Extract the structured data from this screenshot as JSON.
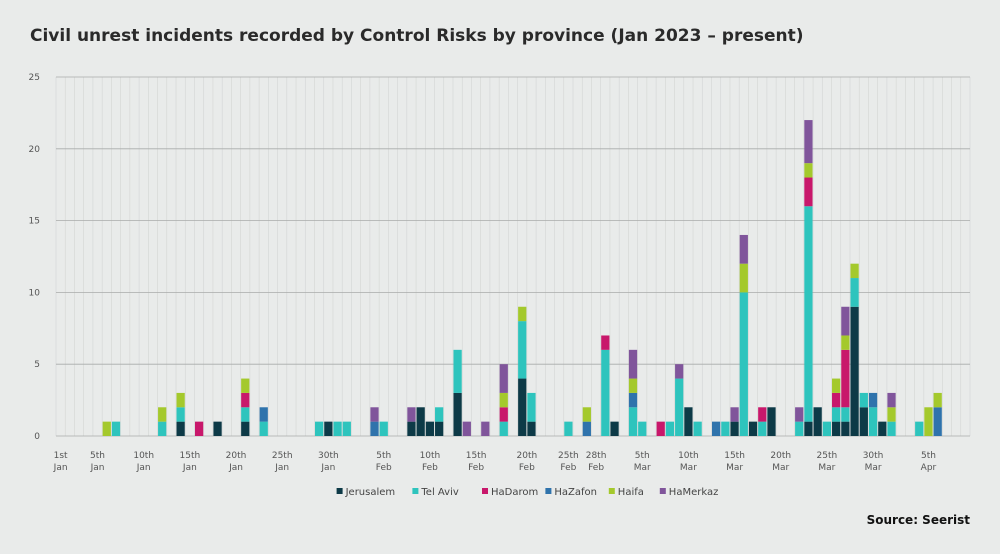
{
  "chart_data": {
    "type": "bar",
    "stacked": true,
    "title": "Civil unrest incidents recorded by Control Risks by province (Jan 2023 – present)",
    "source": "Source: Seerist",
    "xlabel": "",
    "ylabel": "",
    "ylim": [
      0,
      25
    ],
    "yticks": [
      0,
      5,
      10,
      15,
      20,
      25
    ],
    "grid": true,
    "legend_position": "bottom-center",
    "num_days": 99,
    "colors": {
      "Jerusalem": "#0d3a47",
      "Tel Aviv": "#2ec4bd",
      "HaDarom": "#c8186b",
      "HaZafon": "#2f73ac",
      "Haifa": "#a4c92c",
      "HaMerkaz": "#80559b"
    },
    "series_order": [
      "Jerusalem",
      "Tel Aviv",
      "HaDarom",
      "HaZafon",
      "Haifa",
      "HaMerkaz"
    ],
    "x_tick_labels": [
      {
        "day": 1,
        "lines": [
          "1st",
          "Jan"
        ]
      },
      {
        "day": 5,
        "lines": [
          "5th",
          "Jan"
        ]
      },
      {
        "day": 10,
        "lines": [
          "10th",
          "Jan"
        ]
      },
      {
        "day": 15,
        "lines": [
          "15th",
          "Jan"
        ]
      },
      {
        "day": 20,
        "lines": [
          "20th",
          "Jan"
        ]
      },
      {
        "day": 25,
        "lines": [
          "25th",
          "Jan"
        ]
      },
      {
        "day": 30,
        "lines": [
          "30th",
          "Jan"
        ]
      },
      {
        "day": 36,
        "lines": [
          "5th",
          "Feb"
        ]
      },
      {
        "day": 41,
        "lines": [
          "10th",
          "Feb"
        ]
      },
      {
        "day": 46,
        "lines": [
          "15th",
          "Feb"
        ]
      },
      {
        "day": 51.5,
        "lines": [
          "20th",
          "Feb"
        ]
      },
      {
        "day": 56,
        "lines": [
          "25th",
          "Feb"
        ]
      },
      {
        "day": 59,
        "lines": [
          "28th",
          "Feb"
        ]
      },
      {
        "day": 64,
        "lines": [
          "5th",
          "Mar"
        ]
      },
      {
        "day": 69,
        "lines": [
          "10th",
          "Mar"
        ]
      },
      {
        "day": 74,
        "lines": [
          "15th",
          "Mar"
        ]
      },
      {
        "day": 79,
        "lines": [
          "20th",
          "Mar"
        ]
      },
      {
        "day": 84,
        "lines": [
          "25th",
          "Mar"
        ]
      },
      {
        "day": 89,
        "lines": [
          "30th",
          "Mar"
        ]
      },
      {
        "day": 95,
        "lines": [
          "5th",
          "Apr"
        ]
      }
    ],
    "bars": [
      {
        "day": 6,
        "Haifa": 1
      },
      {
        "day": 7,
        "Tel Aviv": 1
      },
      {
        "day": 12,
        "Tel Aviv": 1,
        "Haifa": 1
      },
      {
        "day": 14,
        "Jerusalem": 1,
        "Tel Aviv": 1,
        "Haifa": 1
      },
      {
        "day": 16,
        "HaDarom": 1
      },
      {
        "day": 18,
        "Jerusalem": 1
      },
      {
        "day": 21,
        "Jerusalem": 1,
        "Tel Aviv": 1,
        "HaDarom": 1,
        "Haifa": 1
      },
      {
        "day": 23,
        "Tel Aviv": 1,
        "HaZafon": 1
      },
      {
        "day": 29,
        "Tel Aviv": 1
      },
      {
        "day": 30,
        "Jerusalem": 1
      },
      {
        "day": 31,
        "Tel Aviv": 1
      },
      {
        "day": 32,
        "Tel Aviv": 1
      },
      {
        "day": 35,
        "HaZafon": 1,
        "HaMerkaz": 1
      },
      {
        "day": 36,
        "Tel Aviv": 1
      },
      {
        "day": 39,
        "Jerusalem": 1,
        "HaMerkaz": 1
      },
      {
        "day": 40,
        "Jerusalem": 2
      },
      {
        "day": 41,
        "Jerusalem": 1
      },
      {
        "day": 42,
        "Jerusalem": 1,
        "Tel Aviv": 1
      },
      {
        "day": 44,
        "Jerusalem": 3,
        "Tel Aviv": 3
      },
      {
        "day": 45,
        "HaMerkaz": 1
      },
      {
        "day": 47,
        "HaMerkaz": 1
      },
      {
        "day": 49,
        "Tel Aviv": 1,
        "HaDarom": 1,
        "Haifa": 1,
        "HaMerkaz": 2
      },
      {
        "day": 51,
        "Jerusalem": 4,
        "Tel Aviv": 4,
        "Haifa": 1
      },
      {
        "day": 52,
        "Jerusalem": 1,
        "Tel Aviv": 2
      },
      {
        "day": 56,
        "Tel Aviv": 1
      },
      {
        "day": 58,
        "HaZafon": 1,
        "Haifa": 1
      },
      {
        "day": 60,
        "Tel Aviv": 6,
        "HaDarom": 1
      },
      {
        "day": 61,
        "Jerusalem": 1
      },
      {
        "day": 63,
        "Tel Aviv": 2,
        "HaZafon": 1,
        "Haifa": 1,
        "HaMerkaz": 2
      },
      {
        "day": 64,
        "Tel Aviv": 1
      },
      {
        "day": 66,
        "HaDarom": 1
      },
      {
        "day": 67,
        "Tel Aviv": 1
      },
      {
        "day": 68,
        "Tel Aviv": 4,
        "HaMerkaz": 1
      },
      {
        "day": 69,
        "Jerusalem": 2
      },
      {
        "day": 70,
        "Tel Aviv": 1
      },
      {
        "day": 72,
        "HaZafon": 1
      },
      {
        "day": 73,
        "Tel Aviv": 1
      },
      {
        "day": 74,
        "Jerusalem": 1,
        "HaMerkaz": 1
      },
      {
        "day": 75,
        "Tel Aviv": 10,
        "Haifa": 2,
        "HaMerkaz": 2
      },
      {
        "day": 76,
        "Jerusalem": 1
      },
      {
        "day": 77,
        "Tel Aviv": 1,
        "HaDarom": 1
      },
      {
        "day": 78,
        "Jerusalem": 2
      },
      {
        "day": 81,
        "Tel Aviv": 1,
        "HaMerkaz": 1
      },
      {
        "day": 82,
        "Jerusalem": 1,
        "Tel Aviv": 15,
        "HaDarom": 2,
        "Haifa": 1,
        "HaMerkaz": 3
      },
      {
        "day": 83,
        "Jerusalem": 2
      },
      {
        "day": 84,
        "Tel Aviv": 1
      },
      {
        "day": 85,
        "Jerusalem": 1,
        "Tel Aviv": 1,
        "HaDarom": 1,
        "Haifa": 1
      },
      {
        "day": 86,
        "Jerusalem": 1,
        "Tel Aviv": 1,
        "HaDarom": 4,
        "Haifa": 1,
        "HaMerkaz": 2
      },
      {
        "day": 87,
        "Jerusalem": 9,
        "Tel Aviv": 2,
        "Haifa": 1
      },
      {
        "day": 88,
        "Jerusalem": 2,
        "Tel Aviv": 1
      },
      {
        "day": 89,
        "Tel Aviv": 2,
        "HaZafon": 1
      },
      {
        "day": 90,
        "Jerusalem": 1
      },
      {
        "day": 91,
        "Tel Aviv": 1,
        "Haifa": 1,
        "HaMerkaz": 1
      },
      {
        "day": 94,
        "Tel Aviv": 1
      },
      {
        "day": 95,
        "Haifa": 2
      },
      {
        "day": 96,
        "HaZafon": 2,
        "Haifa": 1
      }
    ]
  }
}
